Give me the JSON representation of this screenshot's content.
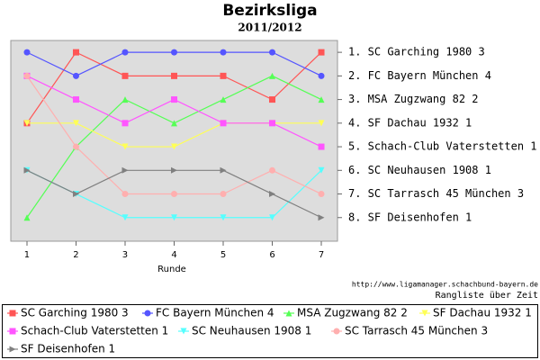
{
  "chart_data": {
    "type": "line",
    "title": "Bezirksliga",
    "subtitle": "2011/2012",
    "x_label": "Runde",
    "source": "http://www.ligamanager.schachbund-bayern.de",
    "caption": "Rangliste über Zeit",
    "x": [
      1,
      2,
      3,
      4,
      5,
      6,
      7
    ],
    "xlim": [
      0.67,
      7.33
    ],
    "xticks": [
      1,
      2,
      3,
      4,
      5,
      6,
      7
    ],
    "ylim": [
      0.5,
      9
    ],
    "y_inverted": true,
    "yticks": [
      {
        "value": 1,
        "label": "1. SC Garching 1980 3"
      },
      {
        "value": 2,
        "label": "2. FC Bayern München 4"
      },
      {
        "value": 3,
        "label": "3. MSA Zugzwang 82 2"
      },
      {
        "value": 4,
        "label": "4. SF Dachau 1932 1"
      },
      {
        "value": 5,
        "label": "5. Schach-Club Vaterstetten 1"
      },
      {
        "value": 6,
        "label": "6. SC Neuhausen 1908 1"
      },
      {
        "value": 7,
        "label": "7. SC Tarrasch 45 München 3"
      },
      {
        "value": 8,
        "label": "8. SF Deisenhofen 1"
      }
    ],
    "series": [
      {
        "name": "SC Garching 1980 3",
        "color": "#ff5555",
        "marker": "square",
        "values": [
          4,
          1,
          2,
          2,
          2,
          3,
          1
        ]
      },
      {
        "name": "FC Bayern München 4",
        "color": "#5555ff",
        "marker": "circle",
        "values": [
          1,
          2,
          1,
          1,
          1,
          1,
          2
        ]
      },
      {
        "name": "MSA Zugzwang 82 2",
        "color": "#55ff55",
        "marker": "triangle-up",
        "values": [
          8,
          5,
          3,
          4,
          3,
          2,
          3
        ]
      },
      {
        "name": "SF Dachau 1932 1",
        "color": "#ffff55",
        "marker": "triangle-down",
        "values": [
          4,
          4,
          5,
          5,
          4,
          4,
          4
        ]
      },
      {
        "name": "Schach-Club Vaterstetten 1",
        "color": "#ff55ff",
        "marker": "square",
        "values": [
          2,
          3,
          4,
          3,
          4,
          4,
          5
        ]
      },
      {
        "name": "SC Neuhausen 1908 1",
        "color": "#55ffff",
        "marker": "triangle-down",
        "values": [
          6,
          7,
          8,
          8,
          8,
          8,
          6
        ]
      },
      {
        "name": "SC Tarrasch 45 München 3",
        "color": "#ffafaf",
        "marker": "circle",
        "values": [
          2,
          5,
          7,
          7,
          7,
          6,
          7
        ]
      },
      {
        "name": "SF Deisenhofen 1",
        "color": "#808080",
        "marker": "triangle-right",
        "values": [
          6,
          7,
          6,
          6,
          6,
          7,
          8
        ]
      }
    ]
  }
}
